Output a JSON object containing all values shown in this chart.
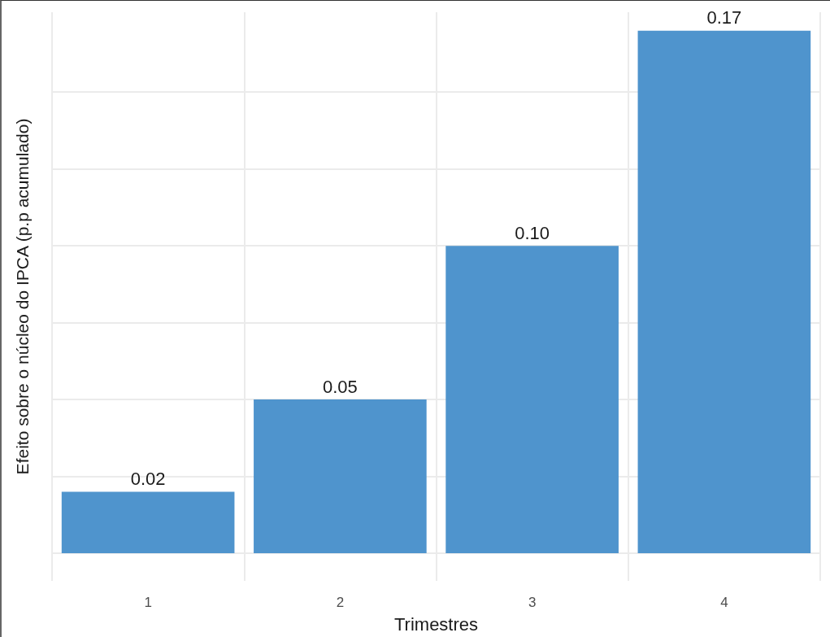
{
  "chart_data": {
    "type": "bar",
    "xlabel": "Trimestres",
    "ylabel": "Efeito sobre o núcleo do IPCA (p.p acumulado)",
    "categories": [
      "1",
      "2",
      "3",
      "4"
    ],
    "values": [
      0.02,
      0.05,
      0.1,
      0.17
    ],
    "value_labels": [
      "0.02",
      "0.05",
      "0.10",
      "0.17"
    ],
    "color": "#4f94cd",
    "data_labels": true,
    "ylim": [
      -0.009,
      0.176
    ],
    "yticks": [
      {
        "value": 0,
        "label": null
      },
      {
        "value": 0.025,
        "label": null
      },
      {
        "value": 0.05,
        "label": null
      },
      {
        "value": 0.075,
        "label": null
      },
      {
        "value": 0.1,
        "label": null
      },
      {
        "value": 0.125,
        "label": null
      },
      {
        "value": 0.15,
        "label": null
      }
    ],
    "tick_labels": "x",
    "grid": true
  }
}
